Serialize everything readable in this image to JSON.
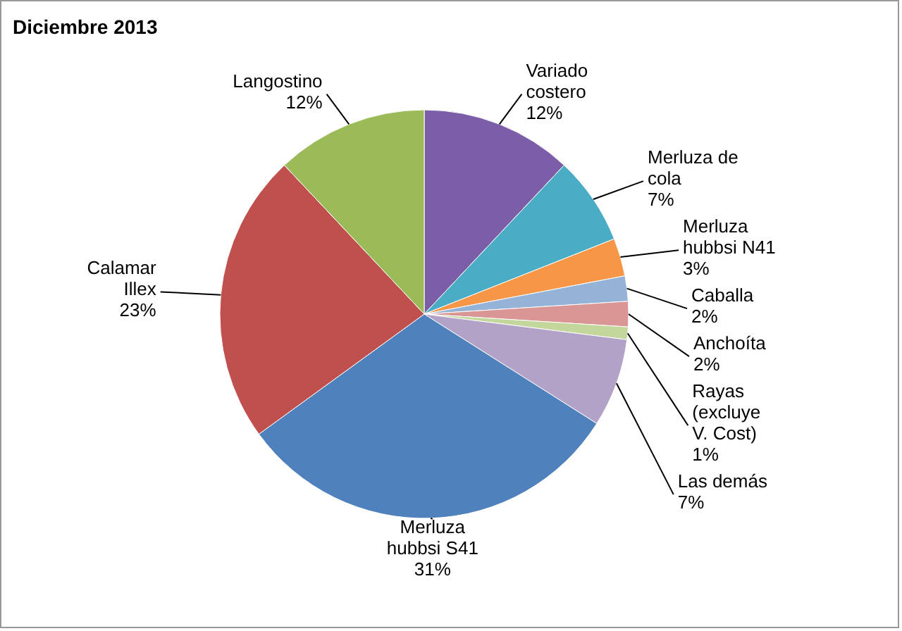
{
  "chart_data": {
    "type": "pie",
    "title": "Diciembre 2013",
    "categories": [
      "Variado costero",
      "Merluza de cola",
      "Merluza hubbsi N41",
      "Caballa",
      "Anchoíta",
      "Rayas (excluye V. Cost)",
      "Las demás",
      "Merluza hubbsi S41",
      "Calamar Illex",
      "Langostino"
    ],
    "values": [
      12,
      7,
      3,
      2,
      2,
      1,
      7,
      31,
      23,
      12
    ],
    "value_labels": [
      "12%",
      "7%",
      "3%",
      "2%",
      "2%",
      "1%",
      "7%",
      "31%",
      "23%",
      "12%"
    ],
    "colors": [
      "#7b5ea7",
      "#4bacc6",
      "#f79646",
      "#95b3d7",
      "#d99694",
      "#c3d69b",
      "#b3a2c7",
      "#4f81bd",
      "#c0504d",
      "#9bbb59"
    ]
  }
}
